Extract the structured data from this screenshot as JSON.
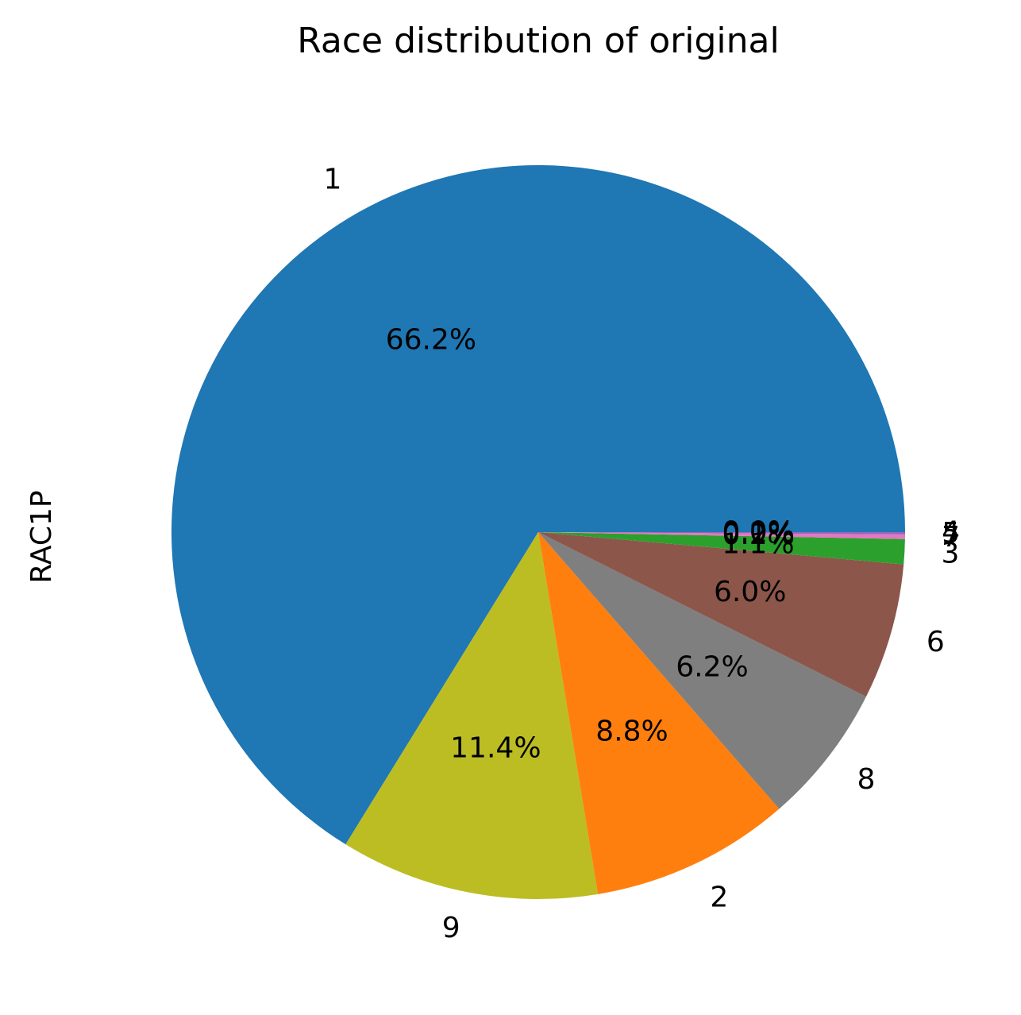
{
  "chart_data": {
    "type": "pie",
    "title": "Race distribution of original",
    "ylabel": "RAC1P",
    "start_angle_deg": 0,
    "direction": "counterclockwise",
    "slices": [
      {
        "label": "1",
        "value": 66.2,
        "pct_label": "66.2%",
        "color": "#1f77b4"
      },
      {
        "label": "9",
        "value": 11.4,
        "pct_label": "11.4%",
        "color": "#bcbd22"
      },
      {
        "label": "2",
        "value": 8.8,
        "pct_label": "8.8%",
        "color": "#ff7f0e"
      },
      {
        "label": "8",
        "value": 6.2,
        "pct_label": "6.2%",
        "color": "#7f7f7f"
      },
      {
        "label": "6",
        "value": 6.0,
        "pct_label": "6.0%",
        "color": "#8c564b"
      },
      {
        "label": "3",
        "value": 1.1,
        "pct_label": "1.1%",
        "color": "#2ca02c"
      },
      {
        "label": "7",
        "value": 0.2,
        "pct_label": "0.2%",
        "color": "#e377c2"
      },
      {
        "label": "5",
        "value": 0.1,
        "pct_label": "0.1%",
        "color": "#9467bd"
      },
      {
        "label": "4",
        "value": 0.0,
        "pct_label": "0.0%",
        "color": "#d62728"
      }
    ]
  }
}
